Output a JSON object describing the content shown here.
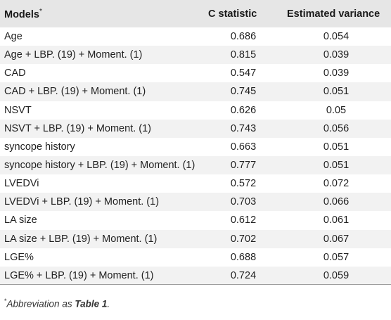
{
  "table": {
    "headers": {
      "models": "Models",
      "models_sup": "*",
      "c_statistic": "C statistic",
      "estimated_variance": "Estimated variance"
    },
    "rows": [
      {
        "model": "Age",
        "c": "0.686",
        "var": "0.054"
      },
      {
        "model": "Age + LBP. (19) + Moment. (1)",
        "c": "0.815",
        "var": "0.039"
      },
      {
        "model": "CAD",
        "c": "0.547",
        "var": "0.039"
      },
      {
        "model": "CAD + LBP. (19) + Moment. (1)",
        "c": "0.745",
        "var": "0.051"
      },
      {
        "model": "NSVT",
        "c": "0.626",
        "var": "0.05"
      },
      {
        "model": "NSVT + LBP. (19) + Moment. (1)",
        "c": "0.743",
        "var": "0.056"
      },
      {
        "model": "syncope history",
        "c": "0.663",
        "var": "0.051"
      },
      {
        "model": "syncope history + LBP. (19) + Moment. (1)",
        "c": "0.777",
        "var": "0.051"
      },
      {
        "model": "LVEDVi",
        "c": "0.572",
        "var": "0.072"
      },
      {
        "model": "LVEDVi + LBP. (19) + Moment. (1)",
        "c": "0.703",
        "var": "0.066"
      },
      {
        "model": "LA size",
        "c": "0.612",
        "var": "0.061"
      },
      {
        "model": "LA size + LBP. (19) + Moment. (1)",
        "c": "0.702",
        "var": "0.067"
      },
      {
        "model": "LGE%",
        "c": "0.688",
        "var": "0.057"
      },
      {
        "model": "LGE% + LBP. (19) + Moment. (1)",
        "c": "0.724",
        "var": "0.059"
      }
    ]
  },
  "footnote": {
    "marker": "*",
    "text": "Abbreviation as ",
    "ref": "Table 1",
    "end": "."
  }
}
